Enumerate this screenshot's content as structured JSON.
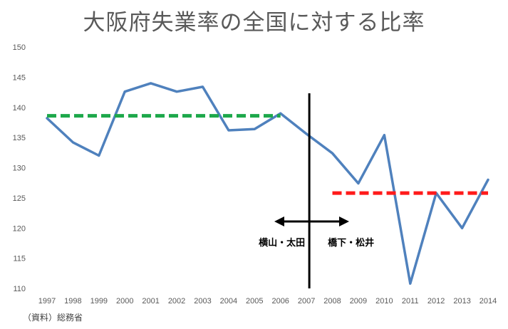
{
  "chart_data": {
    "type": "line",
    "title": "大阪府失業率の全国に対する比率",
    "xlabel": "",
    "ylabel": "",
    "x": [
      "1997",
      "1998",
      "1999",
      "2000",
      "2001",
      "2002",
      "2003",
      "2004",
      "2005",
      "2006",
      "2007",
      "2008",
      "2009",
      "2010",
      "2011",
      "2012",
      "2013",
      "2014"
    ],
    "series": [
      {
        "color": "#4f81bd",
        "values": [
          138.2,
          134.2,
          132.0,
          142.6,
          144.0,
          142.6,
          143.4,
          136.2,
          136.4,
          139.0,
          135.6,
          132.4,
          127.4,
          135.4,
          110.8,
          125.8,
          120.0,
          128.0
        ]
      }
    ],
    "ylim": [
      110,
      150
    ],
    "yticks": [
      110,
      115,
      120,
      125,
      130,
      135,
      140,
      145,
      150
    ],
    "grid": false,
    "reference_lines": [
      {
        "color": "#1da84a",
        "value": 138.6,
        "from": "1997",
        "to": "2006"
      },
      {
        "color": "#ff1a1a",
        "value": 125.8,
        "from": "2008",
        "to": "2014"
      }
    ],
    "divider": {
      "at": "2007"
    },
    "annotations": {
      "left": "横山・太田",
      "right": "橋下・松井"
    }
  },
  "source_note": "（資料）総務省"
}
